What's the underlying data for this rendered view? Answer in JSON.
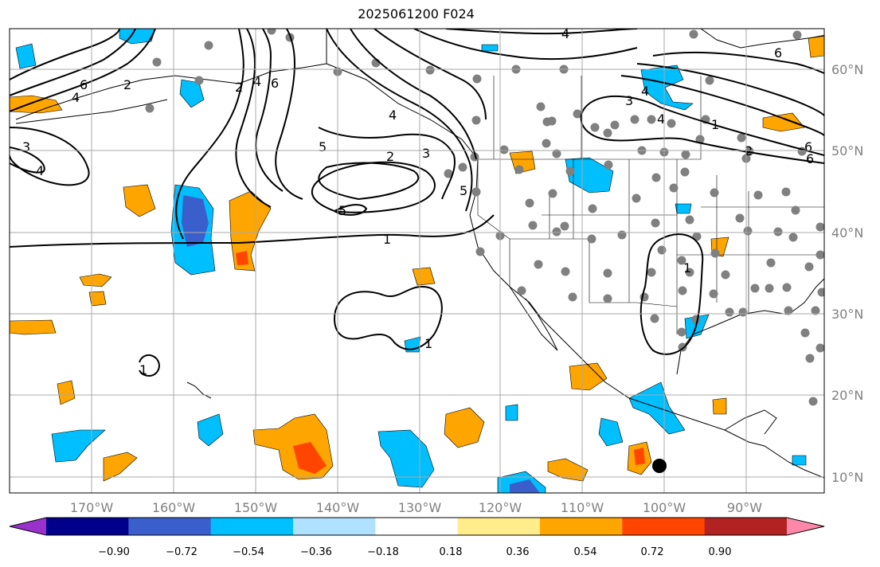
{
  "title": "2025061200 F024",
  "lon_labels": [
    "170°W",
    "160°W",
    "150°W",
    "140°W",
    "130°W",
    "120°W",
    "110°W",
    "100°W",
    "90°W"
  ],
  "lat_labels": [
    "60°N",
    "50°N",
    "40°N",
    "30°N",
    "20°N",
    "10°N"
  ],
  "colorbar": {
    "tick_labels": [
      "−0.90",
      "−0.72",
      "−0.54",
      "−0.36",
      "−0.18",
      "0.18",
      "0.36",
      "0.54",
      "0.72",
      "0.90"
    ],
    "colors": [
      "#9932cc",
      "#00008b",
      "#3a5fcd",
      "#00bfff",
      "#b0e2ff",
      "#ffffff",
      "#ffec8b",
      "#ffa500",
      "#ff4500",
      "#b22222",
      "#ff88aa"
    ]
  },
  "contour_labels": [
    "6",
    "2",
    "4",
    "4",
    "6",
    "2",
    "4",
    "4",
    "6",
    "3",
    "4",
    "5",
    "2",
    "3",
    "5",
    "1",
    "1",
    "1",
    "1",
    "4",
    "3",
    "4",
    "5",
    "6",
    "2",
    "6",
    "1"
  ],
  "colors": {
    "grid": "#a9a9a9",
    "point": "#808080",
    "marker": "#000000"
  }
}
